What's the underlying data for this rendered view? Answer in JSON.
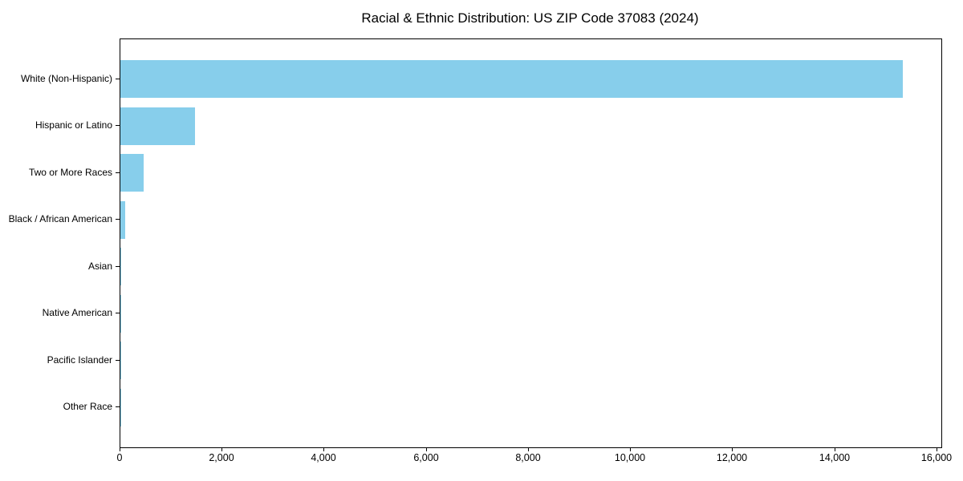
{
  "title": "Racial & Ethnic Distribution: US ZIP Code 37083 (2024)",
  "chart_data": {
    "type": "bar",
    "orientation": "horizontal",
    "title": "Racial & Ethnic Distribution: US ZIP Code 37083 (2024)",
    "categories": [
      "White (Non-Hispanic)",
      "Hispanic or Latino",
      "Two or More Races",
      "Black / African American",
      "Asian",
      "Native American",
      "Pacific Islander",
      "Other Race"
    ],
    "values": [
      15320,
      1460,
      460,
      95,
      20,
      10,
      5,
      5
    ],
    "xlabel": "",
    "ylabel": "",
    "xlim": [
      0,
      16080
    ],
    "x_ticks": [
      0,
      2000,
      4000,
      6000,
      8000,
      10000,
      12000,
      14000,
      16000
    ],
    "x_tick_labels": [
      "0",
      "2,000",
      "4,000",
      "6,000",
      "8,000",
      "10,000",
      "12,000",
      "14,000",
      "16,000"
    ],
    "bar_color": "#87CEEB",
    "grid": false,
    "legend_position": "none",
    "plot_background": "#FFFFFF",
    "axis_color": "#000000"
  }
}
